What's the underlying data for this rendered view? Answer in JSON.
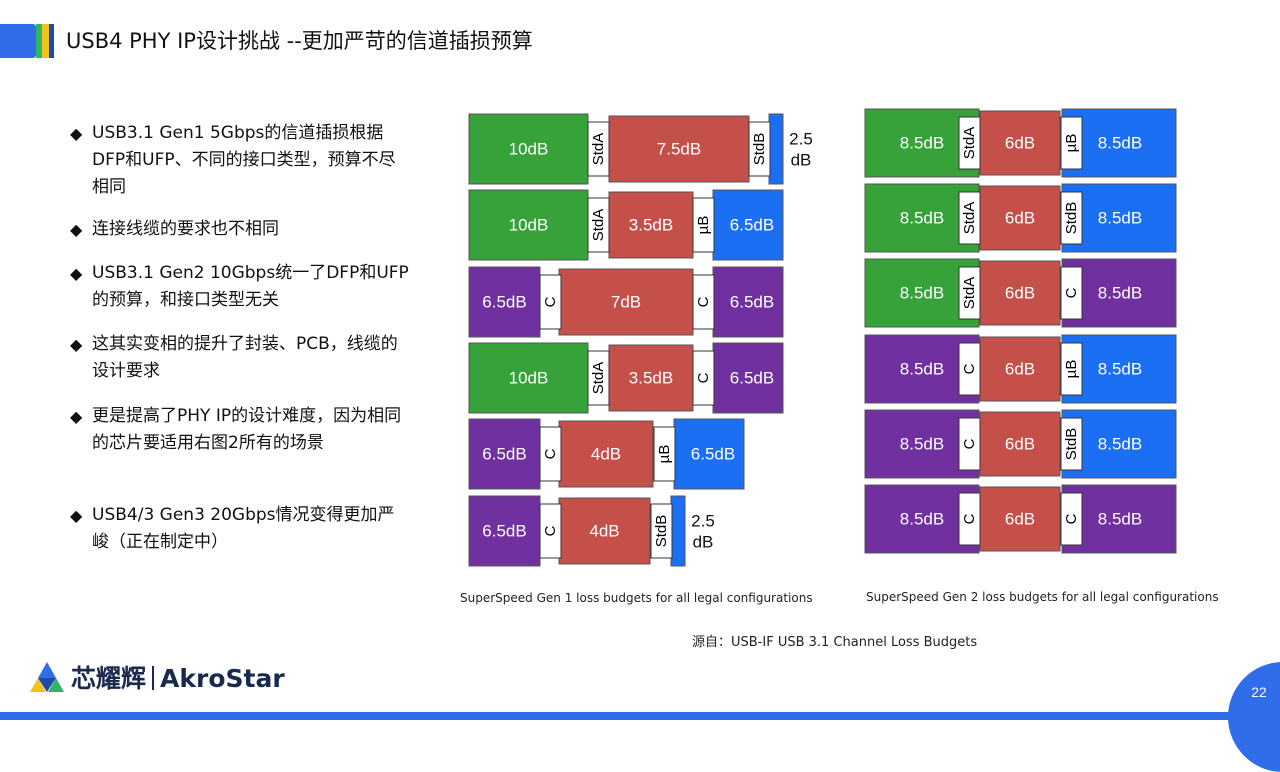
{
  "title": "USB4 PHY IP设计挑战 --更加严苛的信道插损预算",
  "bullets": [
    "USB3.1 Gen1 5Gbps的信道插损根据DFP和UFP、不同的接口类型，预算不尽相同",
    "连接线缆的要求也不相同",
    "USB3.1 Gen2 10Gbps统一了DFP和UFP的预算，和接口类型无关",
    "这其实变相的提升了封装、PCB，线缆的设计要求",
    "更是提高了PHY IP的设计难度，因为相同的芯片要适用右图2所有的场景",
    "USB4/3 Gen3 20Gbps情况变得更加严峻（正在制定中）"
  ],
  "bullet_marker": "◆",
  "colors": {
    "green": "#37a13a",
    "red": "#c5504a",
    "blue": "#1a6ff2",
    "purple": "#7030a0",
    "connector": "#ffffff",
    "accent": "#2f6ee8"
  },
  "diagram_gen1": {
    "caption": "SuperSpeed  Gen 1 loss budgets  for all legal configurations",
    "rows": [
      {
        "host": {
          "label": "10dB",
          "color": "green"
        },
        "host_conn": "StdA",
        "cable": "7.5dB",
        "dev_conn": "StdB",
        "device": {
          "label": "",
          "color": "blue"
        },
        "device_note": "2.5 dB"
      },
      {
        "host": {
          "label": "10dB",
          "color": "green"
        },
        "host_conn": "StdA",
        "cable": "3.5dB",
        "dev_conn": "µB",
        "device": {
          "label": "6.5dB",
          "color": "blue"
        },
        "device_note": ""
      },
      {
        "host": {
          "label": "6.5dB",
          "color": "purple"
        },
        "host_conn": "C",
        "cable": "7dB",
        "dev_conn": "C",
        "device": {
          "label": "6.5dB",
          "color": "purple"
        },
        "device_note": ""
      },
      {
        "host": {
          "label": "10dB",
          "color": "green"
        },
        "host_conn": "StdA",
        "cable": "3.5dB",
        "dev_conn": "C",
        "device": {
          "label": "6.5dB",
          "color": "purple"
        },
        "device_note": ""
      },
      {
        "host": {
          "label": "6.5dB",
          "color": "purple"
        },
        "host_conn": "C",
        "cable": "4dB",
        "dev_conn": "µB",
        "device": {
          "label": "6.5dB",
          "color": "blue"
        },
        "device_note": ""
      },
      {
        "host": {
          "label": "6.5dB",
          "color": "purple"
        },
        "host_conn": "C",
        "cable": "4dB",
        "dev_conn": "StdB",
        "device": {
          "label": "",
          "color": "blue"
        },
        "device_note": "2.5 dB"
      }
    ]
  },
  "diagram_gen2": {
    "caption": "SuperSpeed  Gen 2 loss budgets  for all legal configurations",
    "rows": [
      {
        "host": {
          "label": "8.5dB",
          "color": "green"
        },
        "host_conn": "StdA",
        "cable": "6dB",
        "dev_conn": "µB",
        "device": {
          "label": "8.5dB",
          "color": "blue"
        }
      },
      {
        "host": {
          "label": "8.5dB",
          "color": "green"
        },
        "host_conn": "StdA",
        "cable": "6dB",
        "dev_conn": "StdB",
        "device": {
          "label": "8.5dB",
          "color": "blue"
        }
      },
      {
        "host": {
          "label": "8.5dB",
          "color": "green"
        },
        "host_conn": "StdA",
        "cable": "6dB",
        "dev_conn": "C",
        "device": {
          "label": "8.5dB",
          "color": "purple"
        }
      },
      {
        "host": {
          "label": "8.5dB",
          "color": "purple"
        },
        "host_conn": "C",
        "cable": "6dB",
        "dev_conn": "µB",
        "device": {
          "label": "8.5dB",
          "color": "blue"
        }
      },
      {
        "host": {
          "label": "8.5dB",
          "color": "purple"
        },
        "host_conn": "C",
        "cable": "6dB",
        "dev_conn": "StdB",
        "device": {
          "label": "8.5dB",
          "color": "blue"
        }
      },
      {
        "host": {
          "label": "8.5dB",
          "color": "purple"
        },
        "host_conn": "C",
        "cable": "6dB",
        "dev_conn": "C",
        "device": {
          "label": "8.5dB",
          "color": "purple"
        }
      }
    ]
  },
  "source": "源自：USB-IF USB 3.1 Channel Loss Budgets",
  "brand": {
    "cn": "芯耀辉",
    "en": "AkroStar"
  },
  "page_number": "22"
}
